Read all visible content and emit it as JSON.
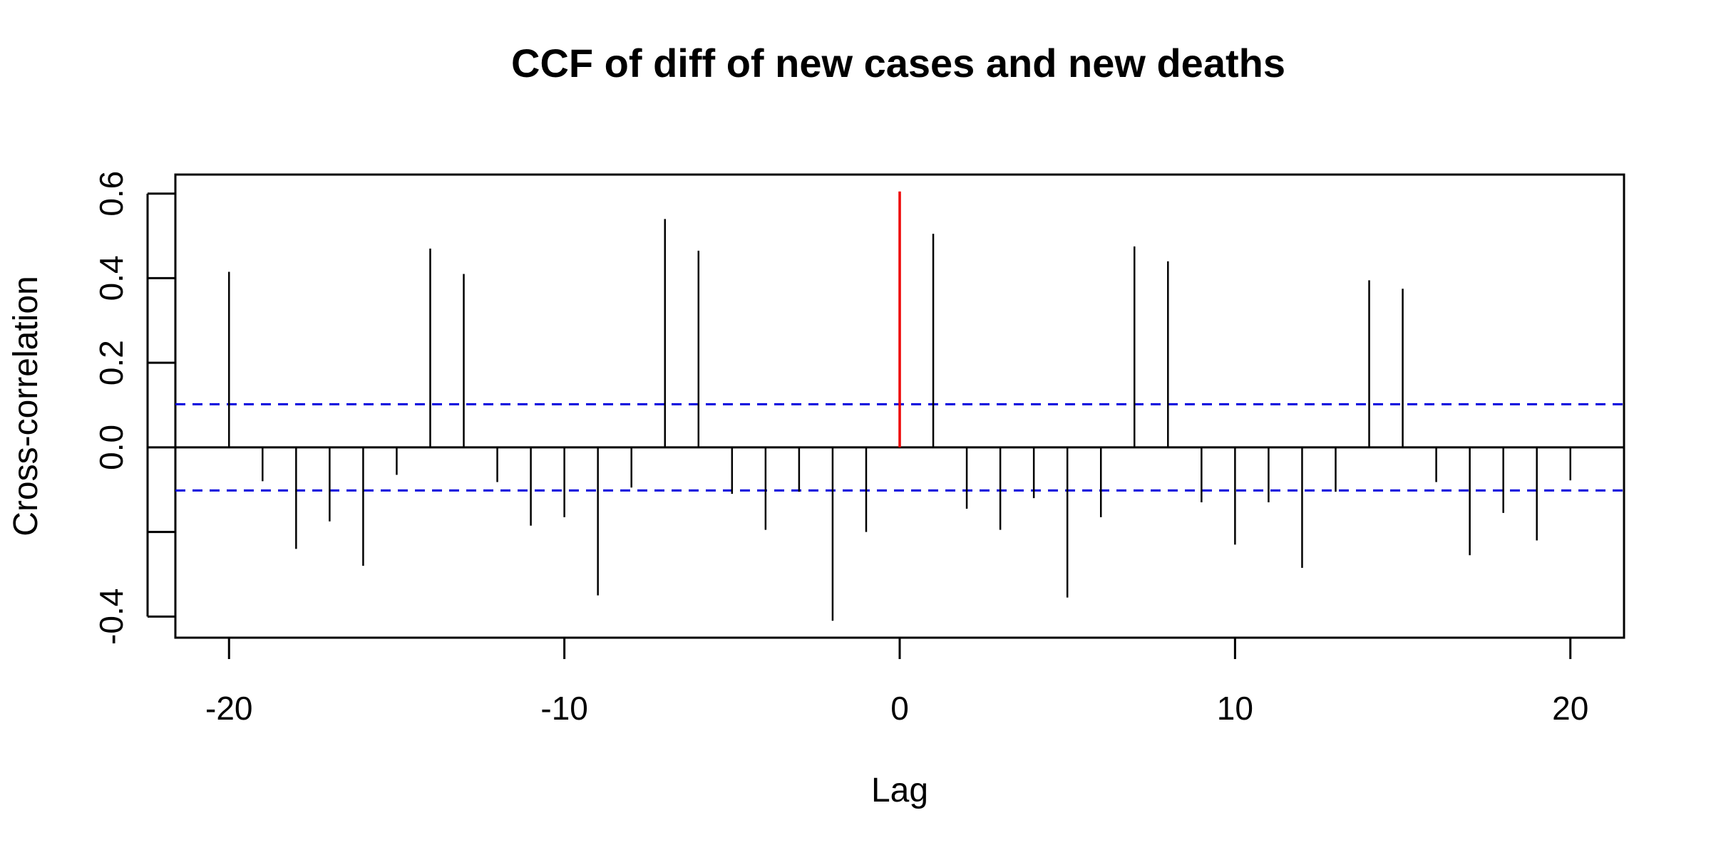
{
  "chart_data": {
    "type": "bar",
    "title": "CCF of diff of new cases and new deaths",
    "xlabel": "Lag",
    "ylabel": "Cross-correlation",
    "xlim": [
      -21.6,
      21.6
    ],
    "ylim": [
      -0.45,
      0.645
    ],
    "x_ticks": [
      "-20",
      "-10",
      "0",
      "10",
      "20"
    ],
    "y_ticks": [
      "-0.4",
      "",
      "0.0",
      "0.2",
      "0.4",
      "0.6"
    ],
    "grid": false,
    "lags": [
      -20,
      -19,
      -18,
      -17,
      -16,
      -15,
      -14,
      -13,
      -12,
      -11,
      -10,
      -9,
      -8,
      -7,
      -6,
      -5,
      -4,
      -3,
      -2,
      -1,
      0,
      1,
      2,
      3,
      4,
      5,
      6,
      7,
      8,
      9,
      10,
      11,
      12,
      13,
      14,
      15,
      16,
      17,
      18,
      19,
      20
    ],
    "values": [
      0.415,
      -0.08,
      -0.24,
      -0.175,
      -0.28,
      -0.065,
      0.47,
      0.41,
      -0.082,
      -0.185,
      -0.165,
      -0.35,
      -0.095,
      0.54,
      0.465,
      -0.11,
      -0.195,
      -0.105,
      -0.41,
      -0.2,
      0.605,
      0.505,
      -0.145,
      -0.195,
      -0.12,
      -0.355,
      -0.165,
      0.475,
      0.44,
      -0.13,
      -0.23,
      -0.13,
      -0.285,
      -0.105,
      0.395,
      0.375,
      -0.082,
      -0.255,
      -0.155,
      -0.22,
      -0.078
    ],
    "highlight_lag": 0,
    "highlight_color": "#ee0000",
    "bar_color": "#000000",
    "confidence_bounds": [
      0.102,
      -0.102
    ],
    "confidence_color": "#0000dd"
  }
}
